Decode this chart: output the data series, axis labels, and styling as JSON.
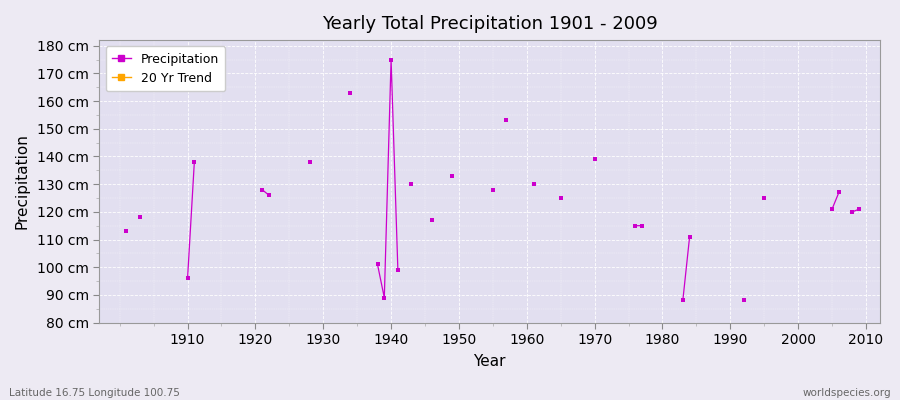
{
  "title": "Yearly Total Precipitation 1901 - 2009",
  "xlabel": "Year",
  "ylabel": "Precipitation",
  "subtitle_left": "Latitude 16.75 Longitude 100.75",
  "subtitle_right": "worldspecies.org",
  "ylim": [
    80,
    180
  ],
  "line_color": "#cc00cc",
  "trend_color": "#ffa500",
  "bg_outer": "#edeaf3",
  "bg_inner": "#e2dff0",
  "legend_items": [
    "Precipitation",
    "20 Yr Trend"
  ],
  "legend_colors": [
    "#cc00cc",
    "#ffa500"
  ],
  "years": [
    1901,
    1902,
    1903,
    1904,
    1905,
    1906,
    1907,
    1908,
    1909,
    1910,
    1911,
    1912,
    1913,
    1914,
    1915,
    1916,
    1917,
    1918,
    1919,
    1920,
    1921,
    1922,
    1923,
    1924,
    1925,
    1926,
    1927,
    1928,
    1929,
    1930,
    1931,
    1932,
    1933,
    1934,
    1935,
    1936,
    1937,
    1938,
    1939,
    1940,
    1941,
    1942,
    1943,
    1944,
    1945,
    1946,
    1947,
    1948,
    1949,
    1950,
    1951,
    1952,
    1953,
    1954,
    1955,
    1956,
    1957,
    1958,
    1959,
    1960,
    1961,
    1962,
    1963,
    1964,
    1965,
    1966,
    1967,
    1968,
    1969,
    1970,
    1971,
    1972,
    1973,
    1974,
    1975,
    1976,
    1977,
    1978,
    1979,
    1980,
    1981,
    1982,
    1983,
    1984,
    1985,
    1986,
    1987,
    1988,
    1989,
    1990,
    1991,
    1992,
    1993,
    1994,
    1995,
    1996,
    1997,
    1998,
    1999,
    2000,
    2001,
    2002,
    2003,
    2004,
    2005,
    2006,
    2007,
    2008,
    2009
  ],
  "precip": [
    113,
    null,
    118,
    null,
    null,
    null,
    null,
    null,
    null,
    96,
    138,
    null,
    null,
    null,
    null,
    null,
    null,
    null,
    null,
    null,
    128,
    126,
    null,
    null,
    null,
    null,
    null,
    138,
    null,
    null,
    null,
    null,
    null,
    163,
    null,
    null,
    null,
    101,
    89,
    175,
    99,
    null,
    130,
    null,
    null,
    117,
    null,
    null,
    133,
    null,
    null,
    null,
    null,
    null,
    128,
    null,
    153,
    null,
    null,
    null,
    130,
    null,
    null,
    null,
    125,
    null,
    null,
    null,
    null,
    139,
    null,
    null,
    null,
    null,
    null,
    115,
    115,
    null,
    null,
    null,
    null,
    null,
    88,
    111,
    null,
    null,
    null,
    null,
    null,
    null,
    null,
    88,
    null,
    null,
    125,
    null,
    null,
    null,
    null,
    null,
    null,
    null,
    null,
    null,
    121,
    127,
    null,
    120,
    121
  ]
}
